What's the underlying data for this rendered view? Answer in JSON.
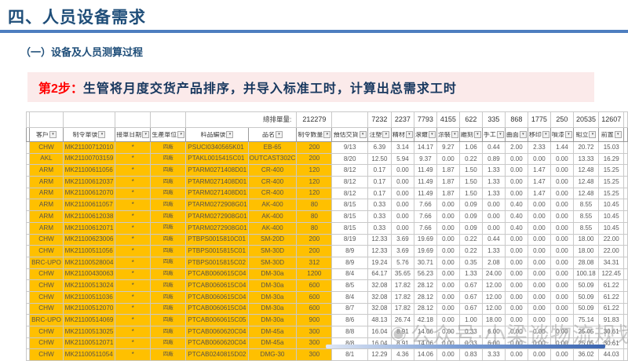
{
  "slide": {
    "title": "四、人员设备需求",
    "subtitle": "（一）设备及人员测算过程",
    "step_label": "第2步：",
    "step_text": "生管将月度交货产品排序，并导入标准工时，计算出总需求工时"
  },
  "table": {
    "total_label": "總排單量:",
    "total_value": "212279",
    "process_totals": [
      "7232",
      "2237",
      "7793",
      "4155",
      "622",
      "335",
      "868",
      "1775",
      "250",
      "20535",
      "12607"
    ],
    "headers": [
      "客戶",
      "制令單號",
      "接單日期",
      "生產單位",
      "料品編號",
      "品名",
      "制令數量",
      "預估交貨",
      "注塑",
      "精材",
      "滾鍍",
      "涂裝",
      "雕刻",
      "手工",
      "曲面",
      "移印",
      "噴漆",
      "組立",
      "前置"
    ],
    "rows": [
      [
        "CHW",
        "MK21100712010",
        "*",
        "四廠",
        "PSUCI0340565K01",
        "EB-65",
        "200",
        "9/13",
        "6.39",
        "3.14",
        "14.17",
        "9.27",
        "1.06",
        "0.44",
        "2.00",
        "2.33",
        "1.44",
        "20.72",
        "15.03"
      ],
      [
        "AKL",
        "MK21100703159",
        "*",
        "四廠",
        "PTAKL0015415C01",
        "OUTCAST302C",
        "200",
        "8/20",
        "12.50",
        "5.94",
        "9.37",
        "0.00",
        "0.22",
        "0.89",
        "0.00",
        "0.00",
        "0.00",
        "13.33",
        "16.29"
      ],
      [
        "ARM",
        "MK21100611056",
        "*",
        "四廠",
        "PTARM0271408D01",
        "CR-400",
        "120",
        "8/12",
        "0.17",
        "0.00",
        "11.49",
        "1.87",
        "1.50",
        "1.33",
        "0.00",
        "1.47",
        "0.00",
        "12.48",
        "15.25"
      ],
      [
        "ARM",
        "MK21100612037",
        "*",
        "四廠",
        "PTARM0271408D01",
        "CR-400",
        "120",
        "8/12",
        "0.17",
        "0.00",
        "11.49",
        "1.87",
        "1.50",
        "1.33",
        "0.00",
        "1.47",
        "0.00",
        "12.48",
        "15.25"
      ],
      [
        "ARM",
        "MK21100612070",
        "*",
        "四廠",
        "PTARM0271408D01",
        "CR-400",
        "120",
        "8/12",
        "0.17",
        "0.00",
        "11.49",
        "1.87",
        "1.50",
        "1.33",
        "0.00",
        "1.47",
        "0.00",
        "12.48",
        "15.25"
      ],
      [
        "ARM",
        "MK21100611057",
        "*",
        "四廠",
        "PTARM0272908G01",
        "AK-400",
        "80",
        "8/15",
        "0.33",
        "0.00",
        "7.66",
        "0.00",
        "0.09",
        "0.00",
        "0.40",
        "0.00",
        "0.00",
        "8.55",
        "10.45"
      ],
      [
        "ARM",
        "MK21100612038",
        "*",
        "四廠",
        "PTARM0272908G01",
        "AK-400",
        "80",
        "8/15",
        "0.33",
        "0.00",
        "7.66",
        "0.00",
        "0.09",
        "0.00",
        "0.40",
        "0.00",
        "0.00",
        "8.55",
        "10.45"
      ],
      [
        "ARM",
        "MK21100612071",
        "*",
        "四廠",
        "PTARM0272908G01",
        "AK-400",
        "80",
        "8/15",
        "0.33",
        "0.00",
        "7.66",
        "0.00",
        "0.09",
        "0.00",
        "0.40",
        "0.00",
        "0.00",
        "8.55",
        "10.45"
      ],
      [
        "CHW",
        "MK21100623006",
        "*",
        "四廠",
        "PTBPS0015810C01",
        "SM-20D",
        "200",
        "8/19",
        "12.33",
        "3.69",
        "19.69",
        "0.00",
        "0.22",
        "0.44",
        "0.00",
        "0.00",
        "0.00",
        "18.00",
        "22.00"
      ],
      [
        "CHW",
        "MK21100511056",
        "*",
        "四廠",
        "PTBPS0015815C01",
        "SM-30D",
        "200",
        "8/9",
        "12.33",
        "3.69",
        "19.69",
        "0.00",
        "0.22",
        "1.33",
        "0.00",
        "0.00",
        "0.00",
        "18.00",
        "22.00"
      ],
      [
        "BRC-UPO",
        "MK21100528004",
        "*",
        "四廠",
        "PTBPS0015815C02",
        "SM-30D",
        "312",
        "8/9",
        "19.24",
        "5.76",
        "30.71",
        "0.00",
        "0.35",
        "2.08",
        "0.00",
        "0.00",
        "0.00",
        "28.08",
        "34.31"
      ],
      [
        "CHW",
        "MK21100430063",
        "*",
        "四廠",
        "PTCAB0060615C04",
        "DM-30a",
        "1200",
        "8/4",
        "64.17",
        "35.65",
        "56.23",
        "0.00",
        "1.33",
        "24.00",
        "0.00",
        "0.00",
        "0.00",
        "100.18",
        "122.45"
      ],
      [
        "CHW",
        "MK21100513024",
        "*",
        "四廠",
        "PTCAB0060615C04",
        "DM-30a",
        "600",
        "8/5",
        "32.08",
        "17.82",
        "28.12",
        "0.00",
        "0.67",
        "12.00",
        "0.00",
        "0.00",
        "0.00",
        "50.09",
        "61.22"
      ],
      [
        "CHW",
        "MK21100511036",
        "*",
        "四廠",
        "PTCAB0060615C04",
        "DM-30a",
        "600",
        "8/4",
        "32.08",
        "17.82",
        "28.12",
        "0.00",
        "0.67",
        "12.00",
        "0.00",
        "0.00",
        "0.00",
        "50.09",
        "61.22"
      ],
      [
        "CHW",
        "MK21100512070",
        "*",
        "四廠",
        "PTCAB0060615C04",
        "DM-30a",
        "600",
        "8/7",
        "32.08",
        "17.82",
        "28.12",
        "0.00",
        "0.67",
        "12.00",
        "0.00",
        "0.00",
        "0.00",
        "50.09",
        "61.22"
      ],
      [
        "BRC-UPO",
        "MK21100514069",
        "*",
        "四廠",
        "PTCAB0060615C05",
        "DM-30a",
        "900",
        "8/6",
        "48.13",
        "26.74",
        "42.18",
        "0.00",
        "1.00",
        "18.00",
        "0.00",
        "0.00",
        "0.00",
        "75.14",
        "91.83"
      ],
      [
        "CHW",
        "MK21100513025",
        "*",
        "四廠",
        "PTCAB0060620C04",
        "DM-45a",
        "300",
        "8/8",
        "16.04",
        "8.91",
        "14.06",
        "0.00",
        "0.33",
        "6.00",
        "0.00",
        "0.00",
        "0.00",
        "25.05",
        "30.61"
      ],
      [
        "CHW",
        "MK21100512071",
        "*",
        "四廠",
        "PTCAB0060620C04",
        "DM-45a",
        "300",
        "8/8",
        "16.04",
        "8.91",
        "14.06",
        "0.00",
        "0.33",
        "6.00",
        "0.00",
        "0.00",
        "0.00",
        "25.05",
        "30.61"
      ],
      [
        "CHW",
        "MK21100511054",
        "*",
        "四廠",
        "PTCAB0240815D02",
        "DMG-30",
        "300",
        "8/1",
        "12.29",
        "4.36",
        "14.06",
        "0.00",
        "0.83",
        "3.33",
        "0.00",
        "0.00",
        "0.00",
        "36.02",
        "44.03"
      ]
    ]
  },
  "watermark": {
    "logo": "◉",
    "text": "公众号·小梁谈物流规划"
  },
  "colors": {
    "title_blue": "#1f4e79",
    "rule_blue": "#4d7ebf",
    "banner_pink": "#fbeaea",
    "step_red": "#ff0000",
    "cell_yellow": "#ffc000"
  }
}
